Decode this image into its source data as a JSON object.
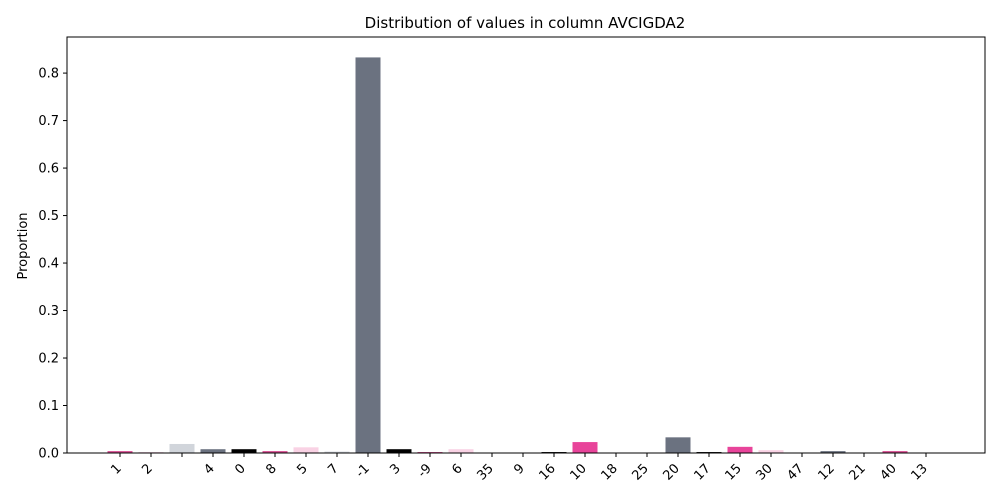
{
  "chart_data": {
    "type": "bar",
    "title": "Distribution of values in column AVCIGDA2",
    "xlabel": "",
    "ylabel": "Proportion",
    "ylim": [
      0,
      0.876
    ],
    "yticks": [
      0.0,
      0.1,
      0.2,
      0.3,
      0.4,
      0.5,
      0.6,
      0.7,
      0.8
    ],
    "ytick_labels": [
      "0.0",
      "0.1",
      "0.2",
      "0.3",
      "0.4",
      "0.5",
      "0.6",
      "0.7",
      "0.8"
    ],
    "grid": false,
    "legend": "none",
    "categories": [
      "1",
      "2",
      "",
      "4",
      "0",
      "8",
      "5",
      "7",
      "-1",
      "3",
      "-9",
      "6",
      "35",
      "9",
      "16",
      "10",
      "18",
      "25",
      "20",
      "17",
      "15",
      "30",
      "47",
      "12",
      "21",
      "40",
      "13"
    ],
    "values": [
      0.004,
      0.002,
      0.019,
      0.008,
      0.008,
      0.004,
      0.012,
      0.003,
      0.833,
      0.008,
      0.002,
      0.008,
      0.001,
      0.001,
      0.002,
      0.023,
      0.001,
      0.001,
      0.033,
      0.002,
      0.013,
      0.006,
      0.001,
      0.004,
      0.001,
      0.004,
      0.001
    ],
    "colors": [
      "#d64b8f",
      "#f6d5e5",
      "#d1d5db",
      "#6b7280",
      "#000000",
      "#d64b8f",
      "#f9d2e4",
      "#d1d5db",
      "#6b7280",
      "#000000",
      "#d64b8f",
      "#f9d2e4",
      "#d1d5db",
      "#6b7280",
      "#000000",
      "#e8449a",
      "#f9d2e4",
      "#d1d5db",
      "#6b7280",
      "#000000",
      "#e8449a",
      "#f9d2e4",
      "#d1d5db",
      "#6b7280",
      "#000000",
      "#d64b8f",
      "#f9d2e4"
    ]
  }
}
